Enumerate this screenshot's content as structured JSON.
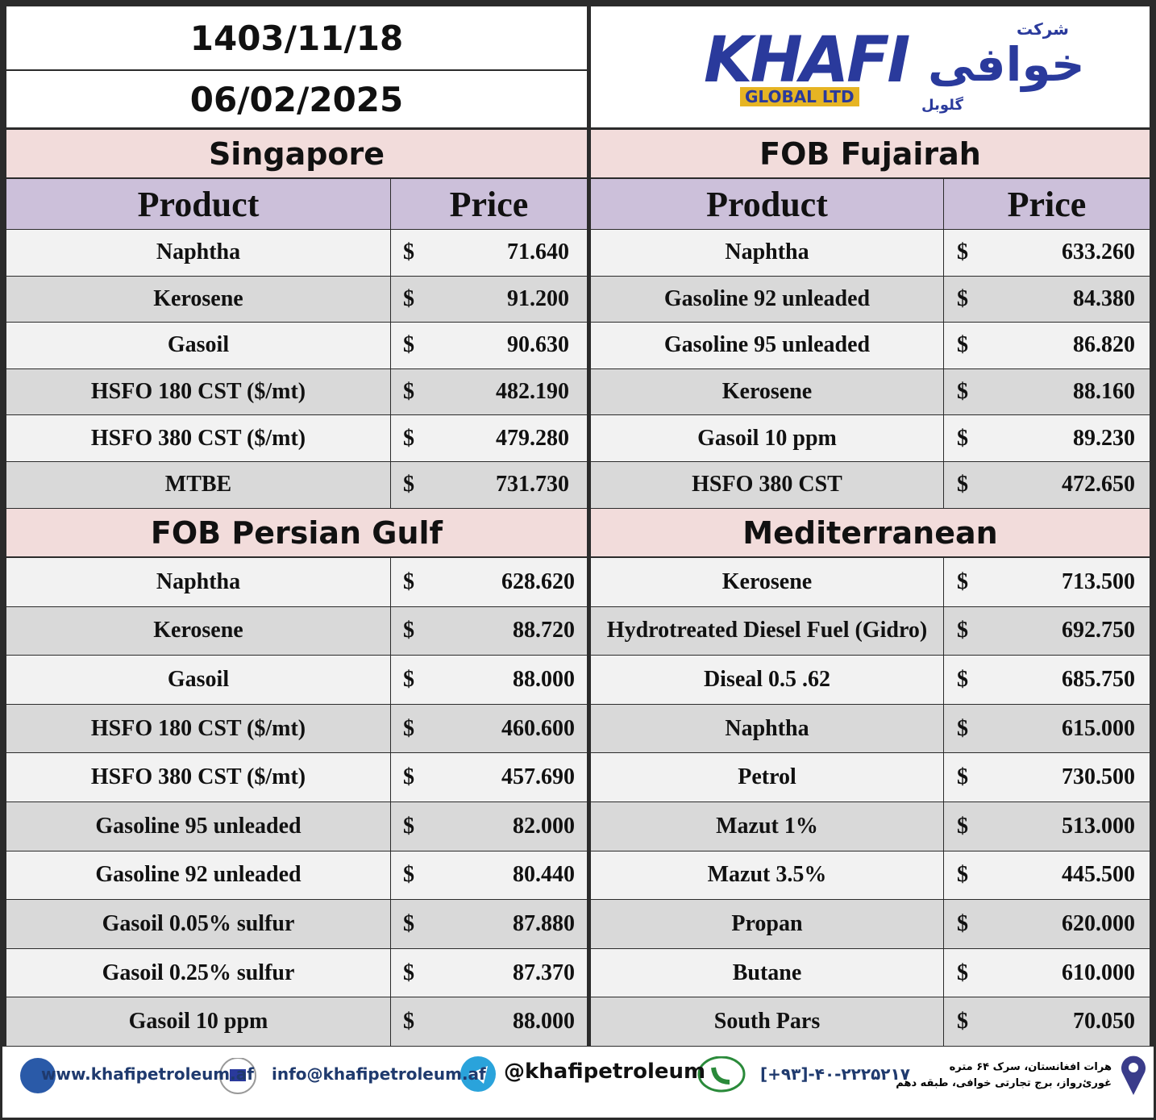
{
  "header": {
    "date_persian": "1403/11/18",
    "date_gregorian": "06/02/2025",
    "logo_text": "KHAFI",
    "logo_subtitle": "GLOBAL LTD",
    "logo_persian_top": "شرکت",
    "logo_persian": "خوافی",
    "logo_persian_bottom": "گلوبل"
  },
  "sections": [
    {
      "title": "Singapore",
      "columns": [
        "Product",
        "Price"
      ],
      "rows": [
        [
          "Naphtha",
          "$",
          "71.640"
        ],
        [
          "Kerosene",
          "$",
          "91.200"
        ],
        [
          "Gasoil",
          "$",
          "90.630"
        ],
        [
          "HSFO 180 CST ($/mt)",
          "$",
          "482.190"
        ],
        [
          "HSFO 380 CST ($/mt)",
          "$",
          "479.280"
        ],
        [
          "MTBE",
          "$",
          "731.730"
        ]
      ]
    },
    {
      "title": "FOB Fujairah",
      "columns": [
        "Product",
        "Price"
      ],
      "rows": [
        [
          "Naphtha",
          "$",
          "633.260"
        ],
        [
          "Gasoline 92 unleaded",
          "$",
          "84.380"
        ],
        [
          "Gasoline 95 unleaded",
          "$",
          "86.820"
        ],
        [
          "Kerosene",
          "$",
          "88.160"
        ],
        [
          "Gasoil 10 ppm",
          "$",
          "89.230"
        ],
        [
          "HSFO 380 CST",
          "$",
          "472.650"
        ]
      ]
    },
    {
      "title": "FOB Persian Gulf",
      "rows": [
        [
          "Naphtha",
          "$",
          "628.620"
        ],
        [
          "Kerosene",
          "$",
          "88.720"
        ],
        [
          "Gasoil",
          "$",
          "88.000"
        ],
        [
          "HSFO 180 CST ($/mt)",
          "$",
          "460.600"
        ],
        [
          "HSFO 380 CST ($/mt)",
          "$",
          "457.690"
        ],
        [
          "Gasoline 95 unleaded",
          "$",
          "82.000"
        ],
        [
          "Gasoline 92 unleaded",
          "$",
          "80.440"
        ],
        [
          "Gasoil 0.05% sulfur",
          "$",
          "87.880"
        ],
        [
          "Gasoil 0.25% sulfur",
          "$",
          "87.370"
        ],
        [
          "Gasoil 10 ppm",
          "$",
          "88.000"
        ]
      ]
    },
    {
      "title": "Mediterranean",
      "rows": [
        [
          "Kerosene",
          "$",
          "713.500"
        ],
        [
          "Hydrotreated Diesel Fuel (Gidro)",
          "$",
          "692.750"
        ],
        [
          "Diseal 0.5 .62",
          "$",
          "685.750"
        ],
        [
          "Naphtha",
          "$",
          "615.000"
        ],
        [
          "Petrol",
          "$",
          "730.500"
        ],
        [
          "Mazut 1%",
          "$",
          "513.000"
        ],
        [
          "Mazut 3.5%",
          "$",
          "445.500"
        ],
        [
          "Propan",
          "$",
          "620.000"
        ],
        [
          "Butane",
          "$",
          "610.000"
        ],
        [
          "South Pars",
          "$",
          "70.050"
        ]
      ]
    }
  ],
  "footer": {
    "website": "www.khafipetroleum.af",
    "email": "info@khafipetroleum.af",
    "telegram": "@khafipetroleum",
    "phone": "[+۹۳]-۴۰-۲۲۲۵۲۱۷",
    "address": [
      "هرات افغانستان، سرک ۶۴ متره",
      "غورئ‌رواز، برج تجارتی خوافی، طبقه دهم"
    ]
  }
}
